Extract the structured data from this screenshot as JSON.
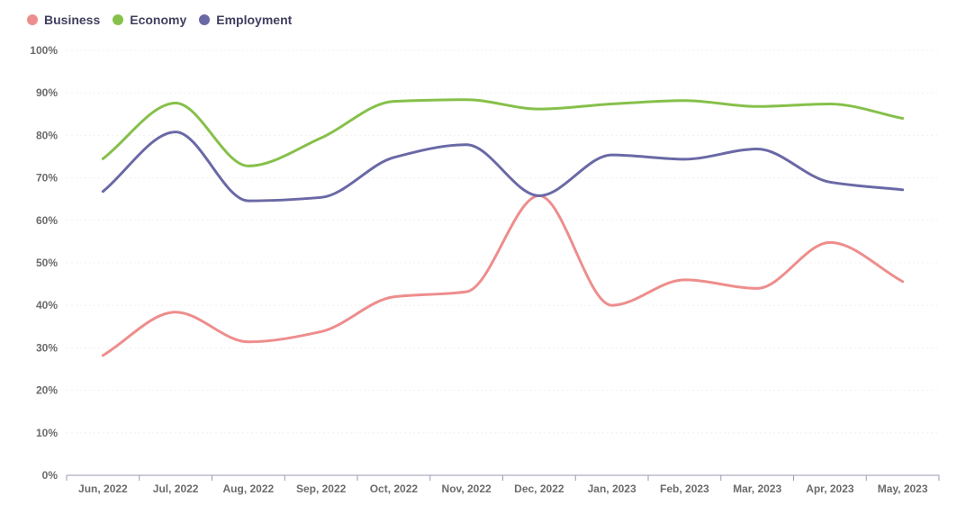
{
  "chart_data": {
    "type": "line",
    "title": "",
    "xlabel": "",
    "ylabel": "",
    "ylim": [
      0,
      100
    ],
    "yticks": [
      "0%",
      "10%",
      "20%",
      "30%",
      "40%",
      "50%",
      "60%",
      "70%",
      "80%",
      "90%",
      "100%"
    ],
    "categories": [
      "Jun, 2022",
      "Jul, 2022",
      "Aug, 2022",
      "Sep, 2022",
      "Oct, 2022",
      "Nov, 2022",
      "Dec, 2022",
      "Jan, 2023",
      "Feb, 2023",
      "Mar, 2023",
      "Apr, 2023",
      "May, 2023"
    ],
    "legend_position": "top-left",
    "grid": true,
    "series": [
      {
        "name": "Business",
        "color": "#ee8d8d",
        "values": [
          28.2,
          38.4,
          31.4,
          33.8,
          42.0,
          43.2,
          65.8,
          40.0,
          46.0,
          44.0,
          54.8,
          45.6
        ]
      },
      {
        "name": "Economy",
        "color": "#86c04a",
        "values": [
          74.5,
          87.6,
          72.8,
          79.4,
          88.0,
          88.4,
          86.2,
          87.4,
          88.2,
          86.8,
          87.4,
          84.0
        ]
      },
      {
        "name": "Employment",
        "color": "#6a69a6",
        "values": [
          66.8,
          80.8,
          64.6,
          65.4,
          74.8,
          77.8,
          65.8,
          75.4,
          74.4,
          76.8,
          69.0,
          67.2
        ]
      }
    ]
  }
}
